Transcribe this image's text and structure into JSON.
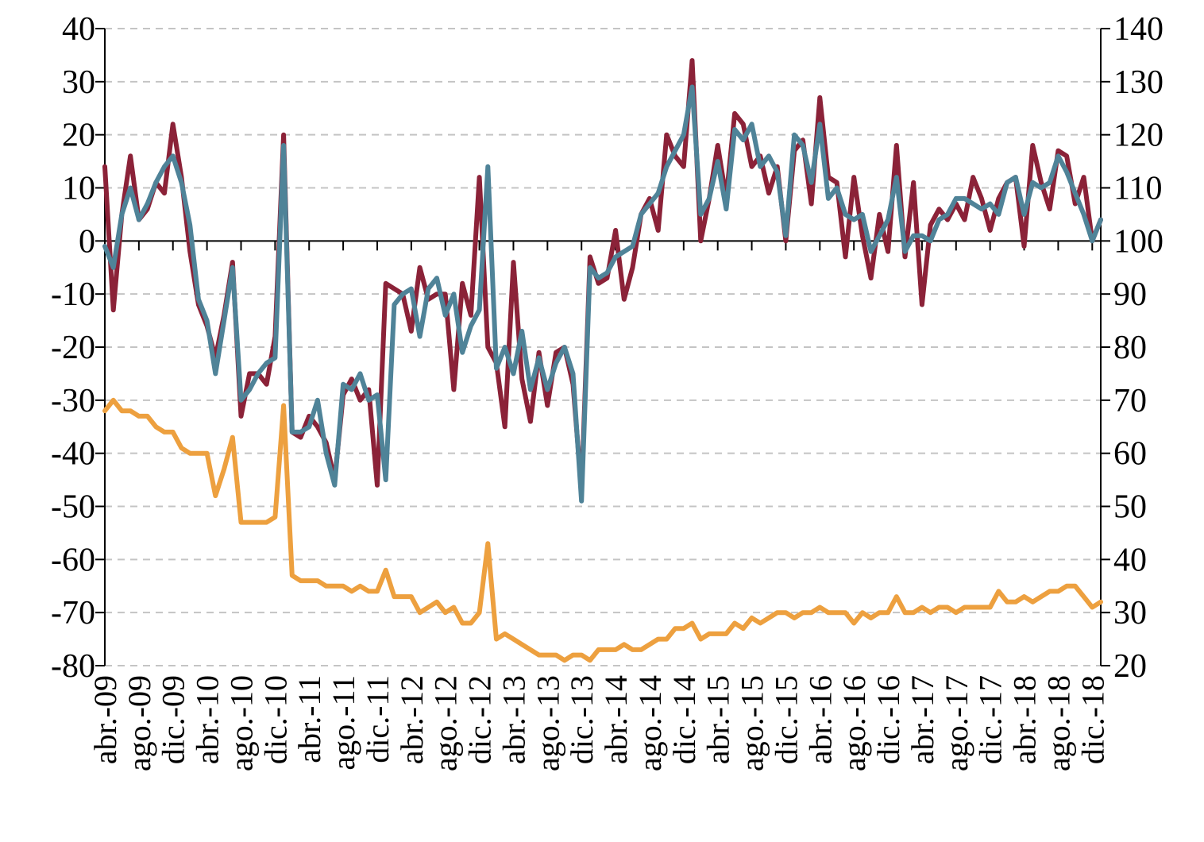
{
  "chart_data": {
    "type": "line",
    "title": "",
    "xlabel": "",
    "ylabel": "",
    "y_left": {
      "min": -80,
      "max": 40,
      "ticks": [
        40,
        30,
        20,
        10,
        0,
        -10,
        -20,
        -30,
        -40,
        -50,
        -60,
        -70,
        -80
      ]
    },
    "y_right": {
      "min": 20,
      "max": 140,
      "ticks": [
        140,
        130,
        120,
        110,
        100,
        90,
        80,
        70,
        60,
        50,
        40,
        30,
        20
      ]
    },
    "grid": true,
    "legend": "none",
    "x_tick_labels": [
      "abr.-09",
      "ago.-09",
      "dic.-09",
      "abr.-10",
      "ago.-10",
      "dic.-10",
      "abr.-11",
      "ago.-11",
      "dic.-11",
      "abr.-12",
      "ago.-12",
      "dic.-12",
      "abr.-13",
      "ago.-13",
      "dic.-13",
      "abr.-14",
      "ago.-14",
      "dic.-14",
      "abr.-15",
      "ago.-15",
      "dic.-15",
      "abr.-16",
      "ago.-16",
      "dic.-16",
      "abr.-17",
      "ago.-17",
      "dic.-17",
      "abr.-18",
      "ago.-18",
      "dic.-18"
    ],
    "x_start": "2009-04",
    "x_end": "2018-12",
    "series": [
      {
        "axis": "left",
        "color": "#8b2238",
        "values": [
          14,
          -13,
          5,
          16,
          4,
          6,
          11,
          9,
          22,
          12,
          -2,
          -12,
          -16,
          -22,
          -14,
          -4,
          -33,
          -25,
          -25,
          -27,
          -18,
          20,
          -36,
          -37,
          -33,
          -35,
          -38,
          -45,
          -29,
          -26,
          -30,
          -28,
          -46,
          -8,
          -9,
          -10,
          -17,
          -5,
          -11,
          -10,
          -10,
          -28,
          -8,
          -14,
          12,
          -20,
          -23,
          -35,
          -4,
          -26,
          -34,
          -21,
          -31,
          -21,
          -20,
          -27,
          -47,
          -3,
          -8,
          -7,
          2,
          -11,
          -5,
          5,
          8,
          2,
          20,
          16,
          14,
          34,
          0,
          8,
          18,
          8,
          24,
          22,
          14,
          16,
          9,
          14,
          0,
          17,
          19,
          7,
          27,
          12,
          11,
          -3,
          12,
          1,
          -7,
          5,
          -2,
          18,
          -3,
          11,
          -12,
          3,
          6,
          4,
          7,
          4,
          12,
          8,
          2,
          8,
          11,
          12,
          -1,
          18,
          11,
          6,
          17,
          16,
          7,
          12,
          0,
          4
        ]
      },
      {
        "axis": "left",
        "color": "#4f8398",
        "values": [
          -1,
          -5,
          5,
          10,
          4,
          7,
          11,
          14,
          16,
          11,
          3,
          -11,
          -15,
          -25,
          -15,
          -5,
          -30,
          -28,
          -25,
          -23,
          -22,
          18,
          -36,
          -36,
          -35,
          -30,
          -40,
          -46,
          -27,
          -28,
          -25,
          -30,
          -29,
          -45,
          -12,
          -10,
          -9,
          -18,
          -9,
          -7,
          -14,
          -10,
          -21,
          -16,
          -13,
          14,
          -24,
          -20,
          -25,
          -17,
          -28,
          -22,
          -28,
          -23,
          -20,
          -25,
          -49,
          -5,
          -7,
          -6,
          -3,
          -2,
          -1,
          5,
          7,
          9,
          14,
          17,
          20,
          29,
          5,
          8,
          15,
          6,
          21,
          19,
          22,
          14,
          16,
          13,
          1,
          20,
          18,
          11,
          22,
          8,
          10,
          5,
          4,
          5,
          -2,
          1,
          4,
          12,
          -2,
          1,
          1,
          0,
          4,
          5,
          8,
          8,
          7,
          6,
          7,
          5,
          11,
          12,
          5,
          11,
          10,
          11,
          16,
          13,
          9,
          5,
          0,
          4
        ]
      },
      {
        "axis": "right",
        "color": "#eda03f",
        "values": [
          68,
          70,
          68,
          68,
          67,
          67,
          65,
          64,
          64,
          61,
          60,
          60,
          60,
          52,
          57,
          63,
          47,
          47,
          47,
          47,
          48,
          69,
          37,
          36,
          36,
          36,
          35,
          35,
          35,
          34,
          35,
          34,
          34,
          38,
          33,
          33,
          33,
          30,
          31,
          32,
          30,
          31,
          28,
          28,
          30,
          43,
          25,
          26,
          25,
          24,
          23,
          22,
          22,
          22,
          21,
          22,
          22,
          21,
          23,
          23,
          23,
          24,
          23,
          23,
          24,
          25,
          25,
          27,
          27,
          28,
          25,
          26,
          26,
          26,
          28,
          27,
          29,
          28,
          29,
          30,
          30,
          29,
          30,
          30,
          31,
          30,
          30,
          30,
          28,
          30,
          29,
          30,
          30,
          33,
          30,
          30,
          31,
          30,
          31,
          31,
          30,
          31,
          31,
          31,
          31,
          34,
          32,
          32,
          33,
          32,
          33,
          34,
          34,
          35,
          35,
          33,
          31,
          32
        ]
      }
    ]
  }
}
